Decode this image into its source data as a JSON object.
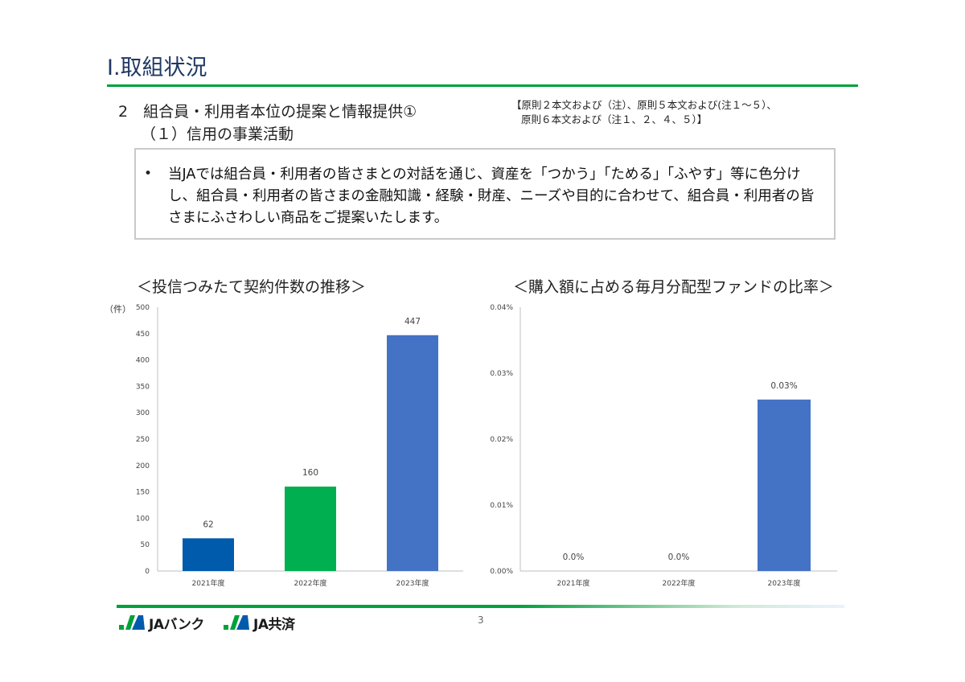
{
  "header": {
    "title": "Ⅰ.取組状況",
    "section_heading": "2　組合員・利用者本位の提案と情報提供①",
    "section_sub": "（１）信用の事業活動",
    "reference_line1": "【原則２本文および（注）、原則５本文および(注１～５）、",
    "reference_line2": "原則６本文および（注１、２、４、５）】"
  },
  "info_box": {
    "bullet": "•",
    "text": "当JAでは組合員・利用者の皆さまとの対話を通じ、資産を「つかう」「ためる」「ふやす」等に色分けし、組合員・利用者の皆さまの金融知識・経験・財産、ニーズや目的に合わせて、組合員・利用者の皆さまにふさわしい商品をご提案いたします。"
  },
  "chart_data": [
    {
      "type": "bar",
      "title": "＜投信つみたて契約件数の推移＞",
      "ylabel": "（件）",
      "categories": [
        "2021年度",
        "2022年度",
        "2023年度"
      ],
      "values": [
        62,
        160,
        447
      ],
      "data_labels": [
        "62",
        "160",
        "447"
      ],
      "bar_colors": [
        "#005bac",
        "#00b050",
        "#4472c4"
      ],
      "ylim": [
        0,
        500
      ],
      "yticks": [
        "0",
        "50",
        "100",
        "150",
        "200",
        "250",
        "300",
        "350",
        "400",
        "450",
        "500"
      ],
      "grid": false,
      "legend": "none"
    },
    {
      "type": "bar",
      "title": "＜購入額に占める毎月分配型ファンドの比率＞",
      "ylabel": "",
      "categories": [
        "2021年度",
        "2022年度",
        "2023年度"
      ],
      "values": [
        0.0,
        0.0,
        0.026
      ],
      "data_labels": [
        "0.0%",
        "0.0%",
        "0.03%"
      ],
      "bar_colors": [
        "#4472c4",
        "#4472c4",
        "#4472c4"
      ],
      "ylim": [
        0,
        0.04
      ],
      "yticks": [
        "0.00%",
        "0.01%",
        "0.02%",
        "0.03%",
        "0.04%"
      ],
      "grid": false,
      "legend": "none"
    }
  ],
  "footer": {
    "page_number": "3",
    "logo1_text": "JAバンク",
    "logo2_text": "JA共済",
    "logo_green": "#00a13a",
    "logo_blue": "#005bac"
  }
}
